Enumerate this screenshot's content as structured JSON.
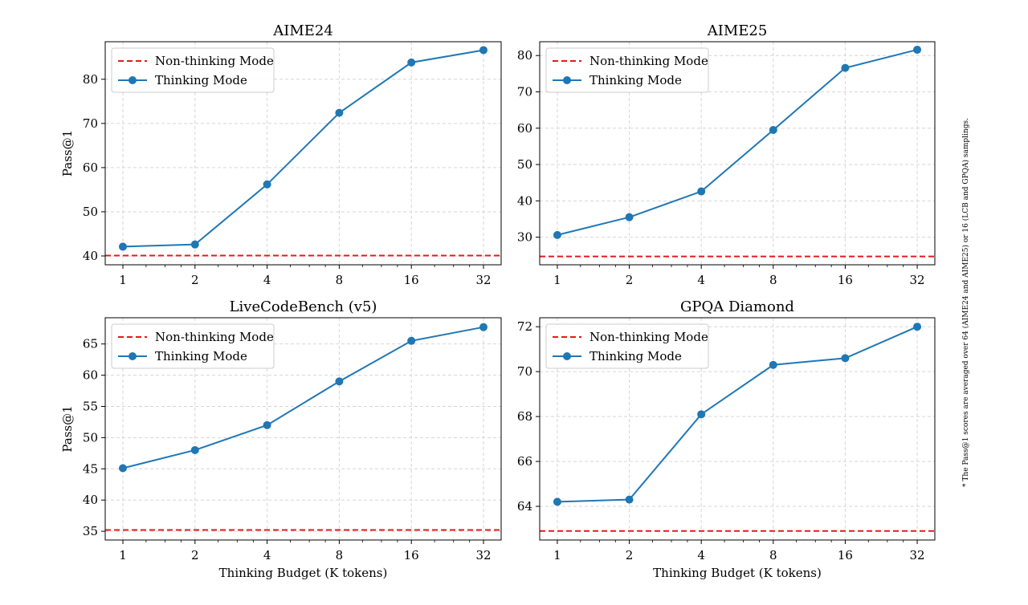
{
  "figure_note": "* The Pass@1 scores are averaged over 64 (AIME24 and AIME25) or 16 (LCB and GPQA) samplings.",
  "colors": {
    "thinking": "#1f77b4",
    "non_thinking": "#e41a1c",
    "grid": "#d6d6d6"
  },
  "chart_data": [
    {
      "type": "line",
      "title": "AIME24",
      "xlabel": "",
      "ylabel": "Pass@1",
      "x_scale": "log2",
      "categories": [
        "1",
        "2",
        "4",
        "8",
        "16",
        "32"
      ],
      "x": [
        1,
        2,
        4,
        8,
        16,
        32
      ],
      "ylim": [
        38,
        88.5
      ],
      "yticks": [
        40,
        50,
        60,
        70,
        80
      ],
      "grid": true,
      "legend_position": "top-left",
      "series": [
        {
          "name": "Non-thinking Mode",
          "style": "dashed-line",
          "y_constant": 40.1
        },
        {
          "name": "Thinking Mode",
          "style": "line-marker",
          "values": [
            42.1,
            42.6,
            56.2,
            72.4,
            83.8,
            86.6
          ]
        }
      ]
    },
    {
      "type": "line",
      "title": "AIME25",
      "xlabel": "",
      "ylabel": "",
      "x_scale": "log2",
      "categories": [
        "1",
        "2",
        "4",
        "8",
        "16",
        "32"
      ],
      "x": [
        1,
        2,
        4,
        8,
        16,
        32
      ],
      "ylim": [
        22.4,
        83.8
      ],
      "yticks": [
        30,
        40,
        50,
        60,
        70,
        80
      ],
      "grid": true,
      "legend_position": "top-left",
      "series": [
        {
          "name": "Non-thinking Mode",
          "style": "dashed-line",
          "y_constant": 24.7
        },
        {
          "name": "Thinking Mode",
          "style": "line-marker",
          "values": [
            30.6,
            35.5,
            42.6,
            59.5,
            76.6,
            81.6
          ]
        }
      ]
    },
    {
      "type": "line",
      "title": "LiveCodeBench (v5)",
      "xlabel": "Thinking Budget (K tokens)",
      "ylabel": "Pass@1",
      "x_scale": "log2",
      "categories": [
        "1",
        "2",
        "4",
        "8",
        "16",
        "32"
      ],
      "x": [
        1,
        2,
        4,
        8,
        16,
        32
      ],
      "ylim": [
        33.6,
        69.2
      ],
      "yticks": [
        35,
        40,
        45,
        50,
        55,
        60,
        65
      ],
      "grid": true,
      "legend_position": "top-left",
      "series": [
        {
          "name": "Non-thinking Mode",
          "style": "dashed-line",
          "y_constant": 35.2
        },
        {
          "name": "Thinking Mode",
          "style": "line-marker",
          "values": [
            45.1,
            48.0,
            52.0,
            59.0,
            65.5,
            67.7
          ]
        }
      ]
    },
    {
      "type": "line",
      "title": "GPQA Diamond",
      "xlabel": "Thinking Budget (K tokens)",
      "ylabel": "",
      "x_scale": "log2",
      "categories": [
        "1",
        "2",
        "4",
        "8",
        "16",
        "32"
      ],
      "x": [
        1,
        2,
        4,
        8,
        16,
        32
      ],
      "ylim": [
        62.5,
        72.4
      ],
      "yticks": [
        64,
        66,
        68,
        70,
        72
      ],
      "grid": true,
      "legend_position": "top-left",
      "series": [
        {
          "name": "Non-thinking Mode",
          "style": "dashed-line",
          "y_constant": 62.9
        },
        {
          "name": "Thinking Mode",
          "style": "line-marker",
          "values": [
            64.2,
            64.3,
            68.1,
            70.3,
            70.6,
            72.0
          ]
        }
      ]
    }
  ]
}
